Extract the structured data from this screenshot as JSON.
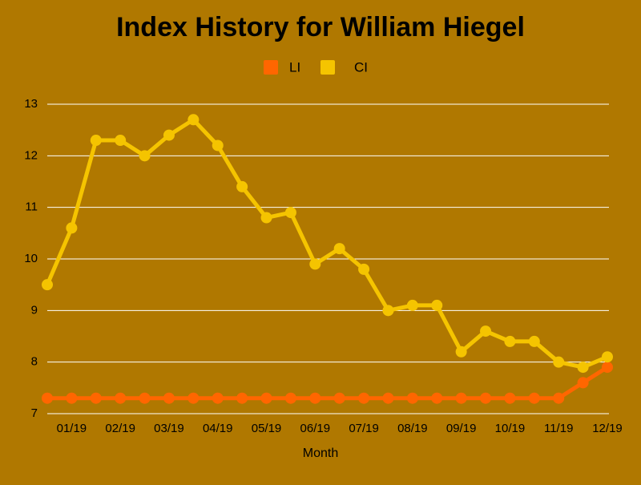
{
  "chart_data": {
    "type": "line",
    "title": "Index History for William Hiegel",
    "x_label": "Month",
    "categories": [
      null,
      "01/19",
      null,
      "02/19",
      null,
      "03/19",
      null,
      "04/19",
      null,
      "05/19",
      null,
      "06/19",
      null,
      "07/19",
      null,
      "08/19",
      null,
      "09/19",
      null,
      "10/19",
      null,
      "11/19",
      null,
      "12/19"
    ],
    "series": [
      {
        "name": "LI",
        "color": "#ff6600",
        "values": [
          7.3,
          7.3,
          7.3,
          7.3,
          7.3,
          7.3,
          7.3,
          7.3,
          7.3,
          7.3,
          7.3,
          7.3,
          7.3,
          7.3,
          7.3,
          7.3,
          7.3,
          7.3,
          7.3,
          7.3,
          7.3,
          7.3,
          7.6,
          7.9
        ]
      },
      {
        "name": "CI",
        "color": "#f5c400",
        "values": [
          9.5,
          10.6,
          12.3,
          12.3,
          12.0,
          12.4,
          12.7,
          12.2,
          11.4,
          10.8,
          10.9,
          9.9,
          10.2,
          9.8,
          9.0,
          9.1,
          9.1,
          8.2,
          8.6,
          8.4,
          8.4,
          8.0,
          7.9,
          8.1
        ]
      }
    ],
    "ylim": [
      7,
      13
    ],
    "yticks": [
      7,
      8,
      9,
      10,
      11,
      12,
      13
    ],
    "grid": true,
    "legend": "top"
  }
}
